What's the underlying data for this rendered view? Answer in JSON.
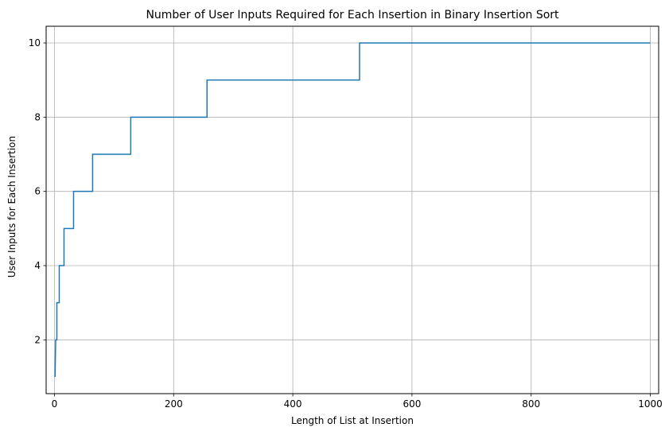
{
  "chart_data": {
    "type": "line",
    "title": "Number of User Inputs Required for Each Insertion in Binary Insertion Sort",
    "xlabel": "Length of List at Insertion",
    "ylabel": "User Inputs for Each Insertion",
    "xlim": [
      -14,
      1014
    ],
    "ylim": [
      0.55,
      10.45
    ],
    "xticks": [
      0,
      200,
      400,
      600,
      800,
      1000
    ],
    "yticks": [
      2,
      4,
      6,
      8,
      10
    ],
    "xtick_labels": [
      "0",
      "200",
      "400",
      "600",
      "800",
      "1000"
    ],
    "ytick_labels": [
      "2",
      "4",
      "6",
      "8",
      "10"
    ],
    "grid": true,
    "line_color": "#1f77b4",
    "series": [
      {
        "x": [
          1,
          2,
          2,
          4,
          4,
          8,
          8,
          16,
          16,
          32,
          32,
          64,
          64,
          128,
          128,
          256,
          256,
          512,
          512,
          1000
        ],
        "y": [
          1,
          2,
          2,
          2,
          3,
          3,
          4,
          4,
          5,
          5,
          6,
          6,
          7,
          7,
          8,
          8,
          9,
          9,
          10,
          10
        ]
      }
    ]
  }
}
